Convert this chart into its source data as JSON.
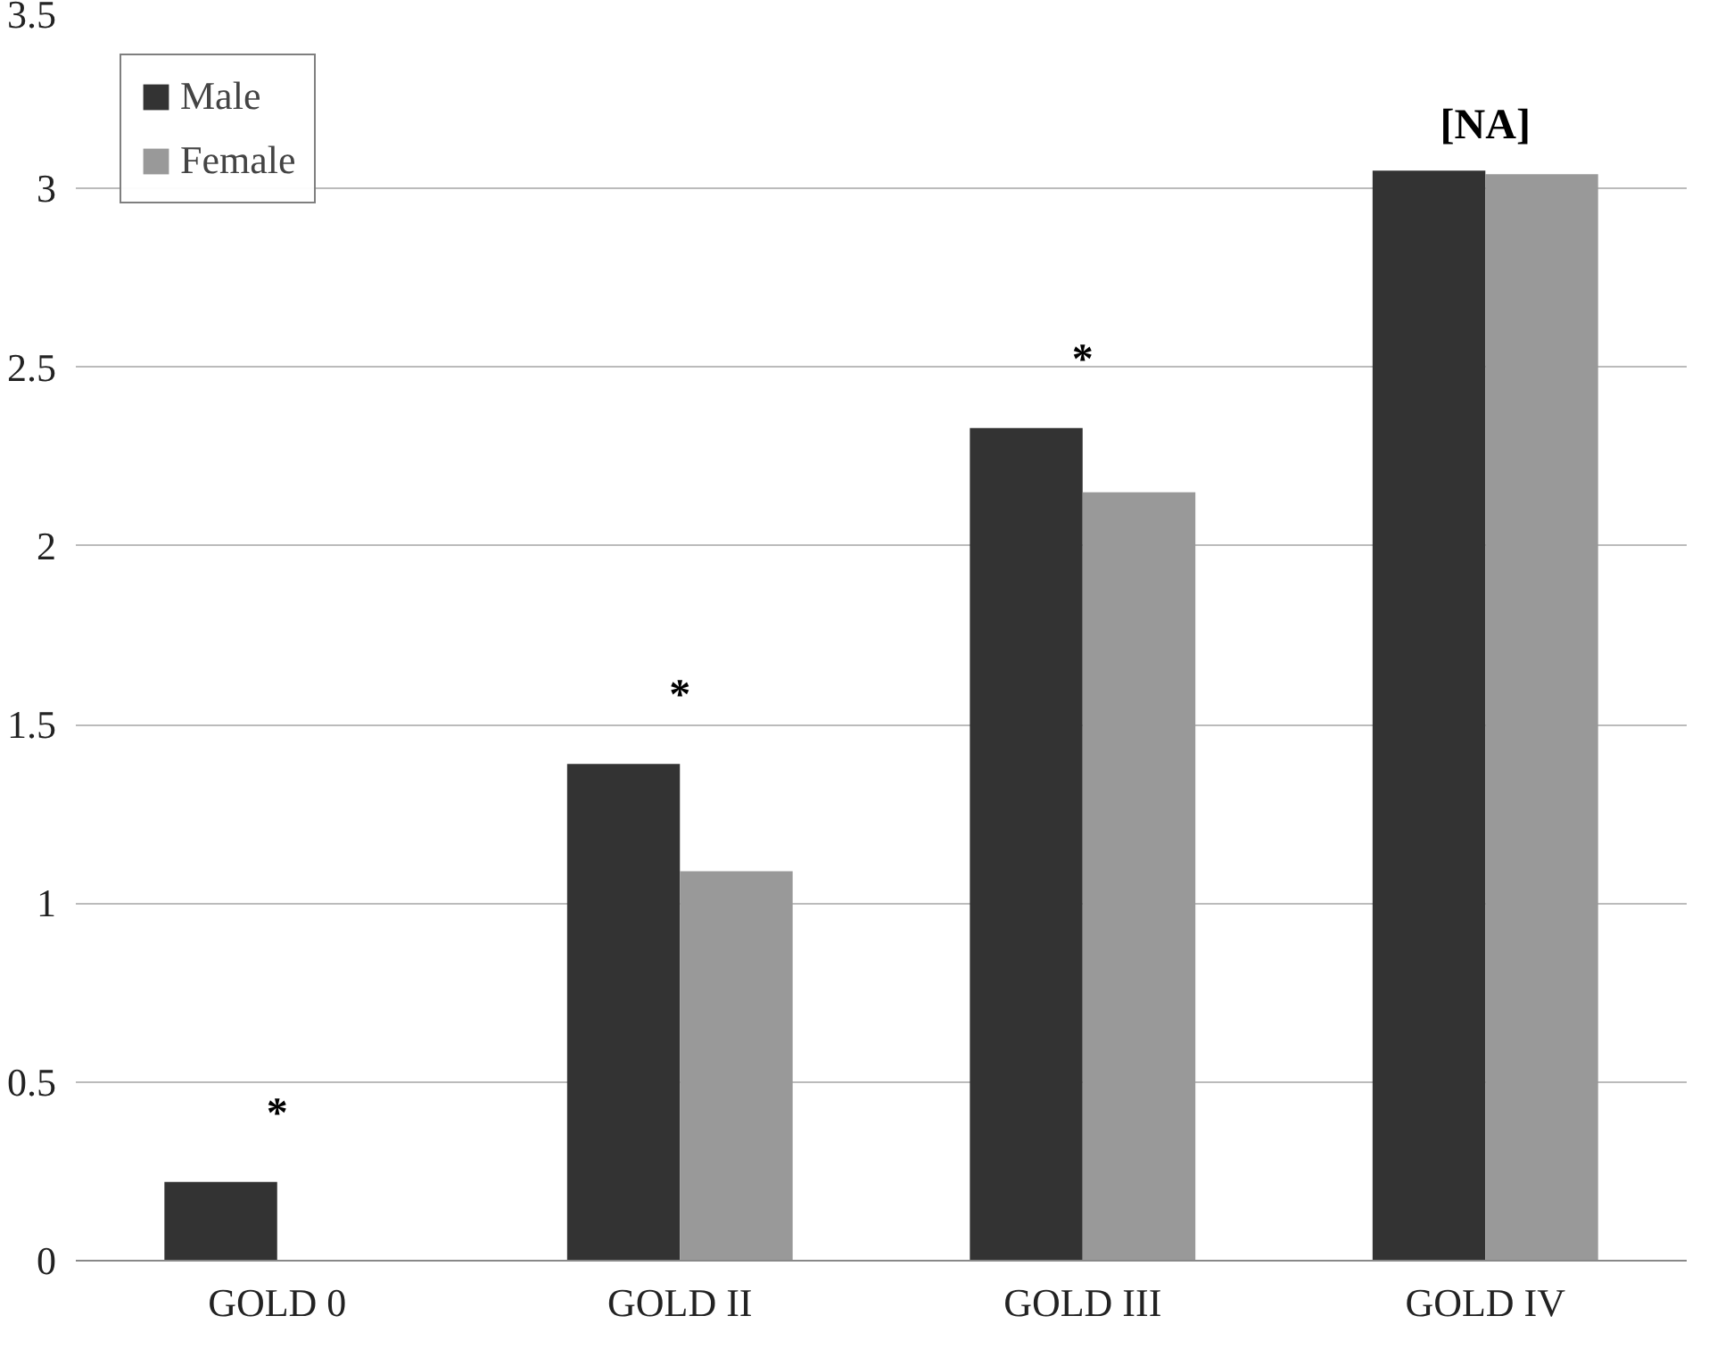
{
  "chart_data": {
    "type": "bar",
    "categories": [
      "GOLD 0",
      "GOLD II",
      "GOLD III",
      "GOLD IV"
    ],
    "series": [
      {
        "name": "Male",
        "color": "#333333",
        "values": [
          0.22,
          1.39,
          2.33,
          3.05
        ]
      },
      {
        "name": "Female",
        "color": "#999999",
        "values": [
          null,
          1.09,
          2.15,
          3.04
        ]
      }
    ],
    "ylim": [
      0,
      3.5
    ],
    "yticks": [
      0,
      0.5,
      1,
      1.5,
      2,
      2.5,
      3,
      3.5
    ],
    "grid": "y",
    "legend": "top left",
    "annotations": [
      "*",
      "*",
      "*",
      "[NA]"
    ]
  }
}
